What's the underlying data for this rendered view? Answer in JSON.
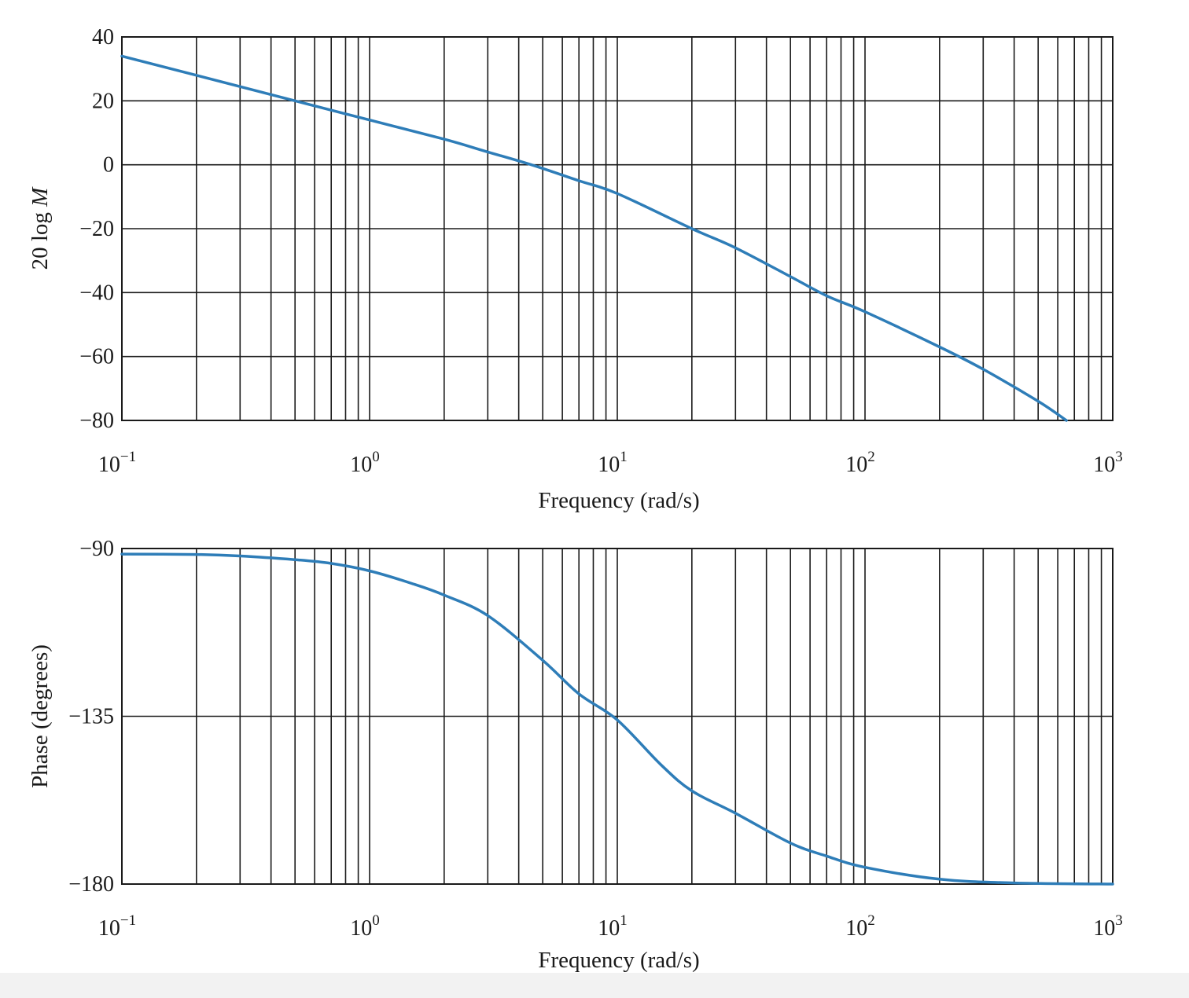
{
  "colors": {
    "curve": "#2e7db8",
    "grid": "#1a1a1a",
    "background": "#ffffff"
  },
  "chart_data": [
    {
      "type": "line",
      "id": "magnitude",
      "xlabel": "Frequency (rad/s)",
      "ylabel": "20 log M",
      "xscale": "log",
      "xlim": [
        0.1,
        1000
      ],
      "ylim": [
        -80,
        40
      ],
      "yticks": [
        40,
        20,
        0,
        -20,
        -40,
        -60,
        -80
      ],
      "ytick_labels": [
        "40",
        "20",
        "0",
        "−20",
        "−40",
        "−60",
        "−80"
      ],
      "xtick_labels": [
        {
          "base": "10",
          "exp": "−1"
        },
        {
          "base": "10",
          "exp": "0"
        },
        {
          "base": "10",
          "exp": "1"
        },
        {
          "base": "10",
          "exp": "2"
        },
        {
          "base": "10",
          "exp": "3"
        }
      ],
      "grid": true,
      "series": [
        {
          "x": [
            0.1,
            0.2,
            0.5,
            1,
            2,
            3,
            4.5,
            7,
            10,
            20,
            30,
            50,
            70,
            100,
            200,
            300,
            500,
            650
          ],
          "y": [
            34,
            28,
            20,
            14,
            8,
            4,
            0,
            -5,
            -9,
            -20,
            -26,
            -35,
            -41,
            -46,
            -57,
            -64,
            -74,
            -80
          ]
        }
      ]
    },
    {
      "type": "line",
      "id": "phase",
      "xlabel": "Frequency (rad/s)",
      "ylabel": "Phase (degrees)",
      "xscale": "log",
      "xlim": [
        0.1,
        1000
      ],
      "ylim": [
        -180,
        -90
      ],
      "yticks": [
        -90,
        -135,
        -180
      ],
      "ytick_labels": [
        "−90",
        "−135",
        "−180"
      ],
      "xtick_labels": [
        {
          "base": "10",
          "exp": "−1"
        },
        {
          "base": "10",
          "exp": "0"
        },
        {
          "base": "10",
          "exp": "1"
        },
        {
          "base": "10",
          "exp": "2"
        },
        {
          "base": "10",
          "exp": "3"
        }
      ],
      "grid": true,
      "series": [
        {
          "x": [
            0.1,
            0.2,
            0.3,
            0.5,
            0.7,
            1,
            1.5,
            2,
            3,
            5,
            7,
            10,
            15,
            20,
            30,
            50,
            70,
            100,
            200,
            400,
            1000
          ],
          "y": [
            -91.5,
            -91.6,
            -92,
            -93,
            -94,
            -96,
            -99.5,
            -102.5,
            -108,
            -120,
            -129,
            -136,
            -148,
            -155,
            -161,
            -169,
            -172.5,
            -175.5,
            -178.7,
            -179.7,
            -180
          ]
        }
      ]
    }
  ]
}
